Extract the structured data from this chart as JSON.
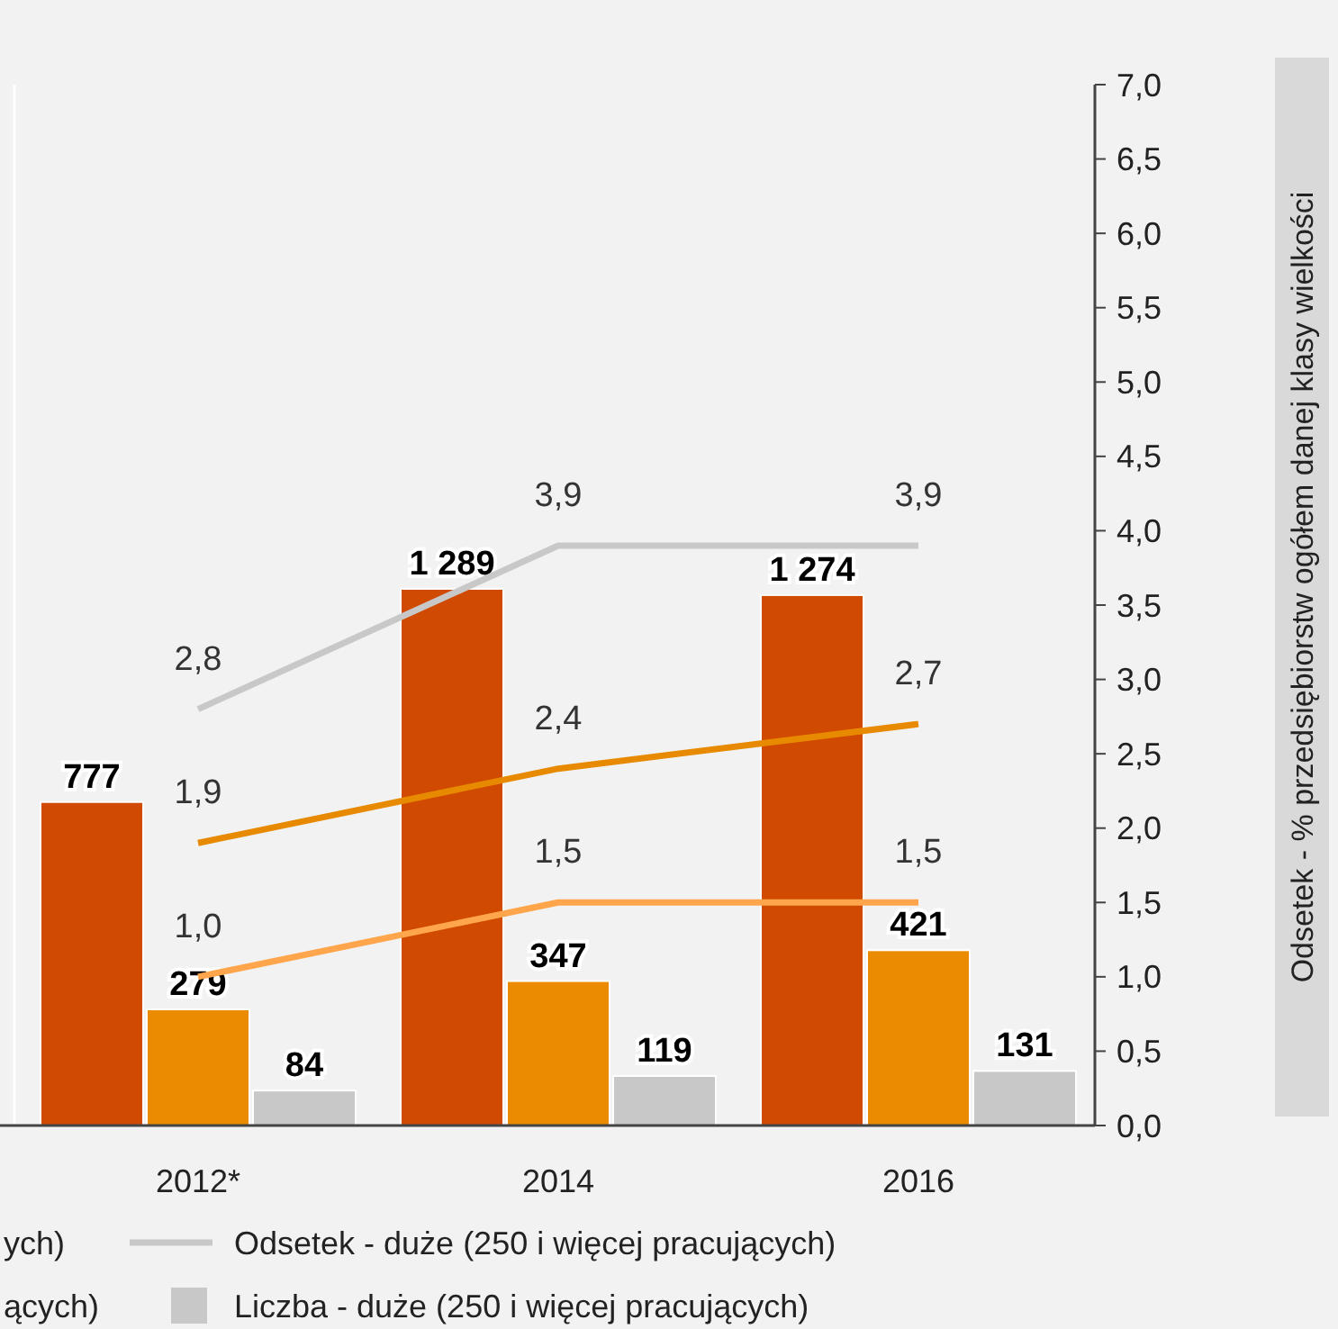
{
  "chart_data": {
    "type": "bar",
    "y2label": "Odsetek - % przedsiębiorstw ogółem danej klasy wielkości",
    "categories": [
      "2012*",
      "2014",
      "2016"
    ],
    "series": [
      {
        "color": "#d04a02",
        "values": [
          777,
          1289,
          1274
        ],
        "value_labels": [
          "777",
          "1 289",
          "1 274"
        ]
      },
      {
        "color": "#eb8c00",
        "values": [
          279,
          347,
          421
        ],
        "value_labels": [
          "279",
          "347",
          "421"
        ]
      },
      {
        "name": "Liczba - duże (250 i więcej pracujących)",
        "color": "#c8c8c8",
        "values": [
          84,
          119,
          131
        ],
        "value_labels": [
          "84",
          "119",
          "131"
        ]
      },
      {
        "type": "line",
        "axis": "y2",
        "name": "Odsetek - duże (250 i więcej pracujących)",
        "color": "#c8c8c8",
        "values": [
          2.8,
          3.9,
          3.9
        ],
        "value_labels": [
          "2,8",
          "3,9",
          "3,9"
        ]
      },
      {
        "type": "line",
        "axis": "y2",
        "color": "#e88a00",
        "values": [
          1.9,
          2.4,
          2.7
        ],
        "value_labels": [
          "1,9",
          "2,4",
          "2,7"
        ]
      },
      {
        "type": "line",
        "axis": "y2",
        "color": "#ffa64d",
        "values": [
          1.0,
          1.5,
          1.5
        ],
        "value_labels": [
          "1,0",
          "1,5",
          "1,5"
        ]
      }
    ],
    "ylim": [
      0,
      2500
    ],
    "y2lim": [
      0,
      7
    ],
    "y2ticks": [
      {
        "value": 0,
        "label": "0,0"
      },
      {
        "value": 0.5,
        "label": "0,5"
      },
      {
        "value": 1,
        "label": "1,0"
      },
      {
        "value": 1.5,
        "label": "1,5"
      },
      {
        "value": 2,
        "label": "2,0"
      },
      {
        "value": 2.5,
        "label": "2,5"
      },
      {
        "value": 3,
        "label": "3,0"
      },
      {
        "value": 3.5,
        "label": "3,5"
      },
      {
        "value": 4,
        "label": "4,0"
      },
      {
        "value": 4.5,
        "label": "4,5"
      },
      {
        "value": 5,
        "label": "5,0"
      },
      {
        "value": 5.5,
        "label": "5,5"
      },
      {
        "value": 6,
        "label": "6,0"
      },
      {
        "value": 6.5,
        "label": "6,5"
      },
      {
        "value": 7,
        "label": "7,0"
      }
    ],
    "legend": "bottom",
    "annotations": [
      "ych)",
      "ących)"
    ]
  }
}
